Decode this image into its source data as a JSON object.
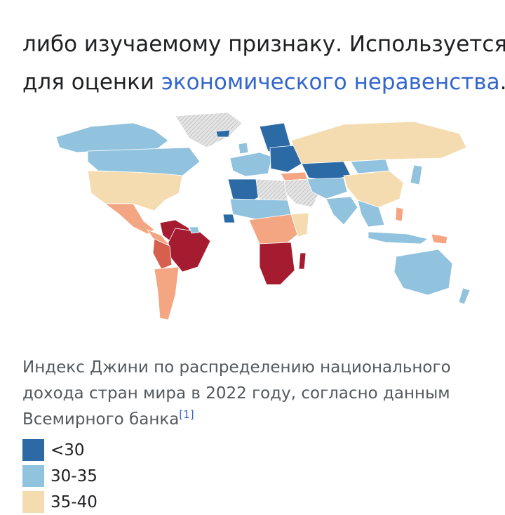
{
  "article": {
    "line1_start": "",
    "line1_partial": "",
    "line2": "либо изучаемому признаку. Используется",
    "line3_prefix": "для оценки ",
    "line3_link": "экономического неравенства",
    "line3_suffix": "."
  },
  "figure": {
    "caption": "Индекс Джини по распределению национального дохода стран мира в 2022 году, согласно данным Всемирного банка",
    "reference": "[1]"
  },
  "legend": {
    "items": [
      {
        "label": "<30",
        "color": "#2c6aa6"
      },
      {
        "label": "30-35",
        "color": "#91c2de"
      },
      {
        "label": "35-40",
        "color": "#f5dcb0"
      }
    ]
  },
  "colors": {
    "lt30": "#2c6aa6",
    "r30_35": "#91c2de",
    "r35_40": "#f5dcb0",
    "r40_45": "#f4a582",
    "r45_50": "#d6604d",
    "gt50": "#a51c30",
    "no_data": "#e0e0e0",
    "link": "#3366cc"
  }
}
